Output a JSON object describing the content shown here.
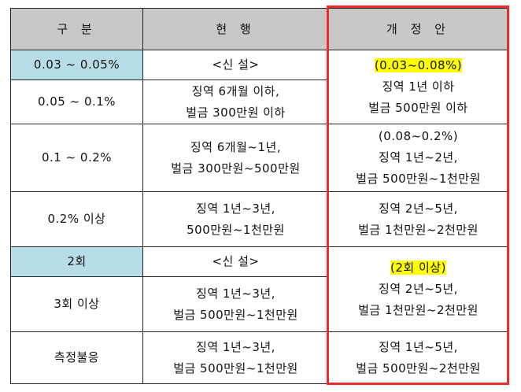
{
  "header": {
    "category": "구 분",
    "current": "현 행",
    "revision": "개 정 안"
  },
  "rows": [
    {
      "category": "0.03 ~ 0.05%",
      "current": [
        "<신 설>"
      ]
    },
    {
      "category": "0.05 ~ 0.1%",
      "current": [
        "징역 6개월 이하,",
        "벌금 300만원 이하"
      ]
    },
    {
      "category": "0.1 ~ 0.2%",
      "current": [
        "징역 6개월~1년,",
        "벌금 300만원~500만원"
      ]
    },
    {
      "category": "0.2% 이상",
      "current": [
        "징역 1년~3년,",
        "500만원~1천만원"
      ]
    },
    {
      "category": "2회",
      "current": [
        "<신 설>"
      ]
    },
    {
      "category": "3회 이상",
      "current": [
        "징역 1년~3년,",
        "벌금 500만원~1천만원"
      ]
    },
    {
      "category": "측정불응",
      "current": [
        "징역 1년~3년,",
        "벌금 500만원~1천만원"
      ]
    }
  ],
  "revisions": [
    {
      "highlight": "(0.03~0.08%)",
      "lines": [
        "징역 1년 이하",
        "벌금 500만원 이하"
      ]
    },
    {
      "highlight": "",
      "lines": [
        "(0.08~0.2%)",
        "징역 1년~2년,",
        "벌금 500만원~1천만원"
      ]
    },
    {
      "highlight": "",
      "lines": [
        "징역 2년~5년,",
        "벌금 1천만원~2천만원"
      ]
    },
    {
      "highlight": "(2회 이상)",
      "lines": [
        "징역 2년~5년,",
        "벌금 1천만원~2천만원"
      ]
    },
    {
      "highlight": "",
      "lines": [
        "징역 1년~5년,",
        "벌금 500만원~2천만원"
      ]
    }
  ],
  "colors": {
    "header_bg": "#c8c8c8",
    "category_highlight_bg": "#b7dde8",
    "text_highlight": "#ffff00",
    "revision_border": "#ee2a2a"
  }
}
